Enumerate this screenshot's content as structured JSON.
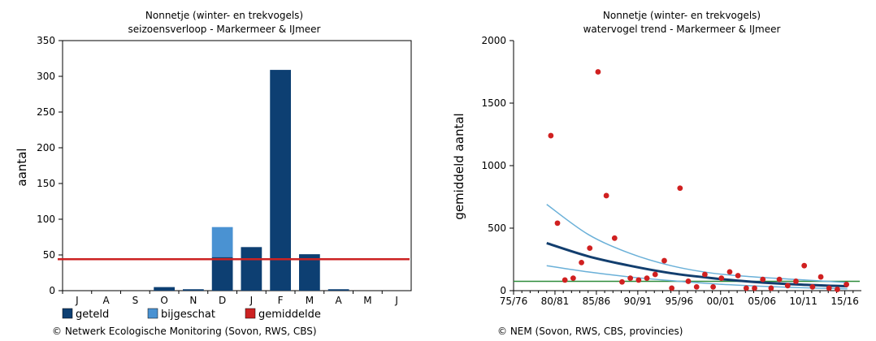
{
  "chart_data": [
    {
      "type": "bar",
      "title": "Nonnetje (winter- en trekvogels)",
      "subtitle": "seizoensverloop - Markermeer & IJmeer",
      "ylabel": "aantal",
      "xlabel": "",
      "ylim": [
        0,
        350
      ],
      "yticks": [
        "0",
        "50",
        "100",
        "150",
        "200",
        "250",
        "300",
        "350"
      ],
      "categories": [
        "J",
        "A",
        "S",
        "O",
        "N",
        "D",
        "J",
        "F",
        "M",
        "A",
        "M",
        "J"
      ],
      "series": [
        {
          "name": "geteld",
          "color": "#0d3f72",
          "values": [
            0,
            0,
            0,
            5,
            2,
            47,
            61,
            309,
            51,
            2,
            0,
            0
          ]
        },
        {
          "name": "bijgeschat",
          "color": "#4a92d2",
          "values": [
            0,
            0,
            0,
            0,
            0,
            42,
            0,
            0,
            0,
            0,
            0,
            0
          ]
        }
      ],
      "average": {
        "name": "gemiddelde",
        "color": "#cc2222",
        "value": 44
      },
      "legend_position": "bottom",
      "footer": "© Netwerk Ecologische Monitoring (Sovon, RWS, CBS)"
    },
    {
      "type": "scatter",
      "title": "Nonnetje (winter- en trekvogels)",
      "subtitle": "watervogel trend - Markermeer & IJmeer",
      "ylabel": "gemiddeld aantal",
      "xlabel": "",
      "xlim": [
        1975,
        2017
      ],
      "ylim": [
        0,
        2000
      ],
      "yticks": [
        "0",
        "500",
        "1000",
        "1500",
        "2000"
      ],
      "xticks": [
        "75/76",
        "80/81",
        "85/86",
        "90/91",
        "95/96",
        "00/01",
        "05/06",
        "10/11",
        "15/16"
      ],
      "points_color": "#d02020",
      "points": [
        [
          1979.5,
          1240
        ],
        [
          1980.3,
          540
        ],
        [
          1981.2,
          85
        ],
        [
          1982.2,
          100
        ],
        [
          1983.2,
          225
        ],
        [
          1984.2,
          340
        ],
        [
          1985.2,
          1750
        ],
        [
          1986.2,
          760
        ],
        [
          1987.2,
          420
        ],
        [
          1988.1,
          70
        ],
        [
          1989.1,
          100
        ],
        [
          1990.1,
          85
        ],
        [
          1991.1,
          100
        ],
        [
          1992.1,
          130
        ],
        [
          1993.2,
          240
        ],
        [
          1994.1,
          20
        ],
        [
          1995.1,
          820
        ],
        [
          1996.1,
          75
        ],
        [
          1997.1,
          30
        ],
        [
          1998.1,
          130
        ],
        [
          1999.1,
          30
        ],
        [
          2000.1,
          100
        ],
        [
          2001.1,
          150
        ],
        [
          2002.1,
          120
        ],
        [
          2003.1,
          20
        ],
        [
          2004.1,
          20
        ],
        [
          2005.1,
          90
        ],
        [
          2006.1,
          20
        ],
        [
          2007.1,
          90
        ],
        [
          2008.1,
          40
        ],
        [
          2009.1,
          75
        ],
        [
          2010.1,
          200
        ],
        [
          2011.1,
          30
        ],
        [
          2012.1,
          110
        ],
        [
          2013.1,
          20
        ],
        [
          2014.1,
          10
        ],
        [
          2015.2,
          50
        ]
      ],
      "trend": {
        "color": "#123e6e",
        "ci_color": "#6ab0d8",
        "baseline_color": "#2e8b3a",
        "baseline_value": 75,
        "x": [
          1979,
          1984,
          1989,
          1994,
          1999,
          2004,
          2009,
          2015.3
        ],
        "mid": [
          380,
          275,
          200,
          140,
          100,
          70,
          50,
          35
        ],
        "upper": [
          690,
          450,
          300,
          200,
          140,
          110,
          90,
          65
        ],
        "lower": [
          200,
          150,
          110,
          80,
          55,
          38,
          25,
          15
        ]
      },
      "footer": "© NEM (Sovon, RWS, CBS, provincies)"
    }
  ]
}
